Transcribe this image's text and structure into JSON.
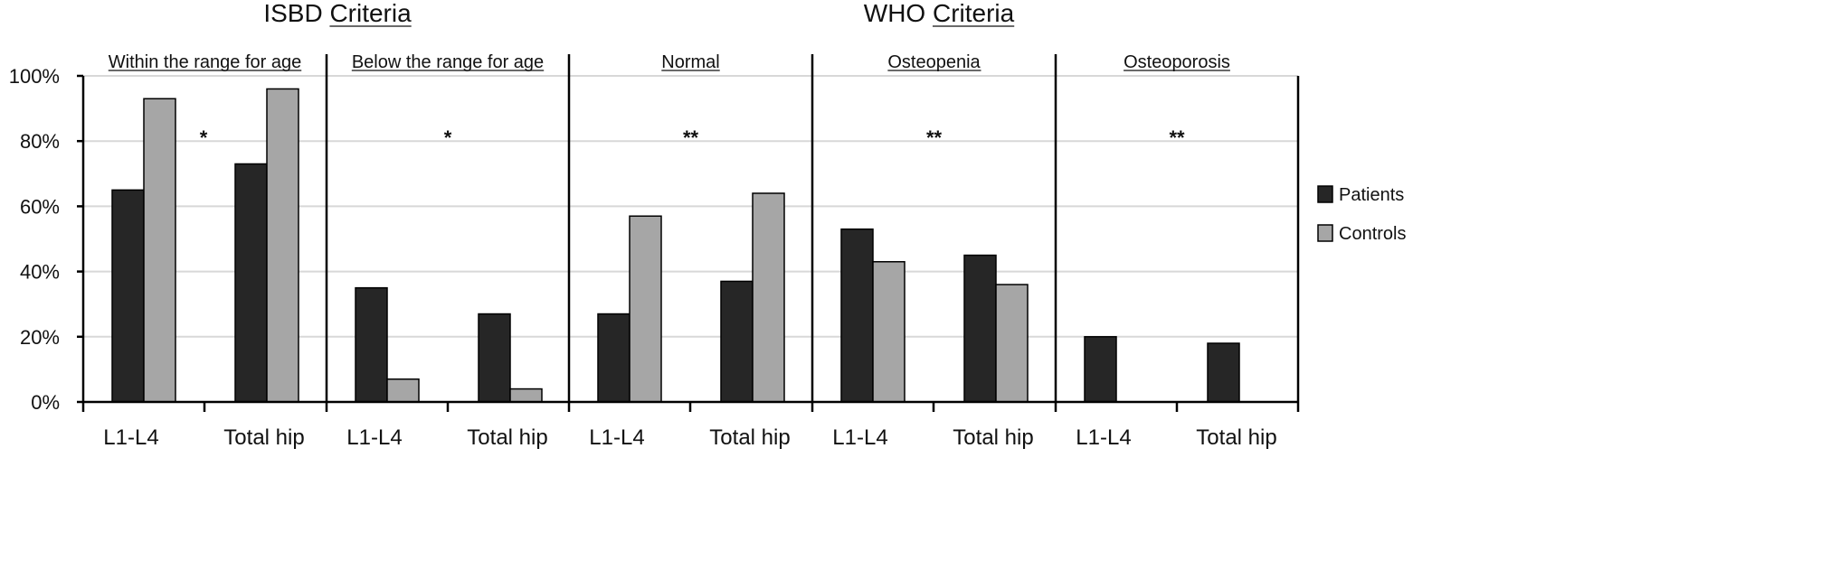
{
  "chart_data": {
    "type": "bar",
    "group_titles": [
      "ISBD Criteria",
      "WHO Criteria"
    ],
    "y_ticks": [
      "0%",
      "20%",
      "40%",
      "60%",
      "80%",
      "100%"
    ],
    "ylim": [
      0,
      100
    ],
    "grid": true,
    "legend_position": "right",
    "series": [
      {
        "name": "Patients",
        "color": "#262626"
      },
      {
        "name": "Controls",
        "color": "#a6a6a6"
      }
    ],
    "panels": [
      {
        "title": "Within the range for age",
        "group": "ISBD Criteria",
        "significance": "*",
        "categories": [
          "L1-L4",
          "Total hip"
        ],
        "values": {
          "Patients": [
            65,
            73
          ],
          "Controls": [
            93,
            96
          ]
        }
      },
      {
        "title": "Below the range for age",
        "group": "ISBD Criteria",
        "significance": "*",
        "categories": [
          "L1-L4",
          "Total hip"
        ],
        "values": {
          "Patients": [
            35,
            27
          ],
          "Controls": [
            7,
            4
          ]
        }
      },
      {
        "title": "Normal",
        "group": "WHO Criteria",
        "significance": "**",
        "categories": [
          "L1-L4",
          "Total hip"
        ],
        "values": {
          "Patients": [
            27,
            37
          ],
          "Controls": [
            57,
            64
          ]
        }
      },
      {
        "title": "Osteopenia",
        "group": "WHO Criteria",
        "significance": "**",
        "categories": [
          "L1-L4",
          "Total hip"
        ],
        "values": {
          "Patients": [
            53,
            45
          ],
          "Controls": [
            43,
            36
          ]
        }
      },
      {
        "title": "Osteoporosis",
        "group": "WHO Criteria",
        "significance": "**",
        "categories": [
          "L1-L4",
          "Total hip"
        ],
        "values": {
          "Patients": [
            20,
            18
          ],
          "Controls": [
            0,
            0
          ]
        }
      }
    ]
  }
}
